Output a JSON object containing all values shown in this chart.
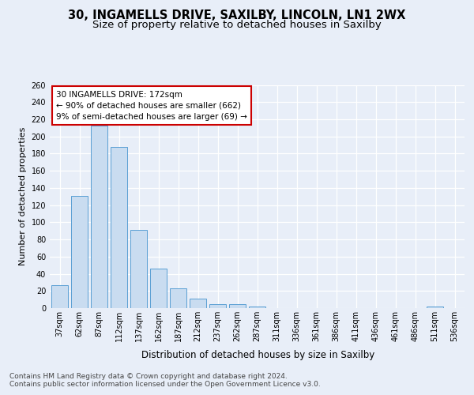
{
  "title1": "30, INGAMELLS DRIVE, SAXILBY, LINCOLN, LN1 2WX",
  "title2": "Size of property relative to detached houses in Saxilby",
  "xlabel": "Distribution of detached houses by size in Saxilby",
  "ylabel": "Number of detached properties",
  "categories": [
    "37sqm",
    "62sqm",
    "87sqm",
    "112sqm",
    "137sqm",
    "162sqm",
    "187sqm",
    "212sqm",
    "237sqm",
    "262sqm",
    "287sqm",
    "311sqm",
    "336sqm",
    "361sqm",
    "386sqm",
    "411sqm",
    "436sqm",
    "461sqm",
    "486sqm",
    "511sqm",
    "536sqm"
  ],
  "values": [
    27,
    131,
    213,
    188,
    91,
    46,
    23,
    11,
    5,
    5,
    2,
    0,
    0,
    0,
    0,
    0,
    0,
    0,
    0,
    2,
    0
  ],
  "bar_color": "#c9dcf0",
  "bar_edge_color": "#5a9fd4",
  "annotation_text": "30 INGAMELLS DRIVE: 172sqm\n← 90% of detached houses are smaller (662)\n9% of semi-detached houses are larger (69) →",
  "annotation_box_color": "#ffffff",
  "annotation_box_edge": "#cc0000",
  "ylim": [
    0,
    260
  ],
  "yticks": [
    0,
    20,
    40,
    60,
    80,
    100,
    120,
    140,
    160,
    180,
    200,
    220,
    240,
    260
  ],
  "footer1": "Contains HM Land Registry data © Crown copyright and database right 2024.",
  "footer2": "Contains public sector information licensed under the Open Government Licence v3.0.",
  "bg_color": "#e8eef8",
  "plot_bg_color": "#e8eef8",
  "grid_color": "#ffffff",
  "title1_fontsize": 10.5,
  "title2_fontsize": 9.5,
  "xlabel_fontsize": 8.5,
  "ylabel_fontsize": 8,
  "tick_fontsize": 7,
  "footer_fontsize": 6.5,
  "ann_fontsize": 7.5
}
